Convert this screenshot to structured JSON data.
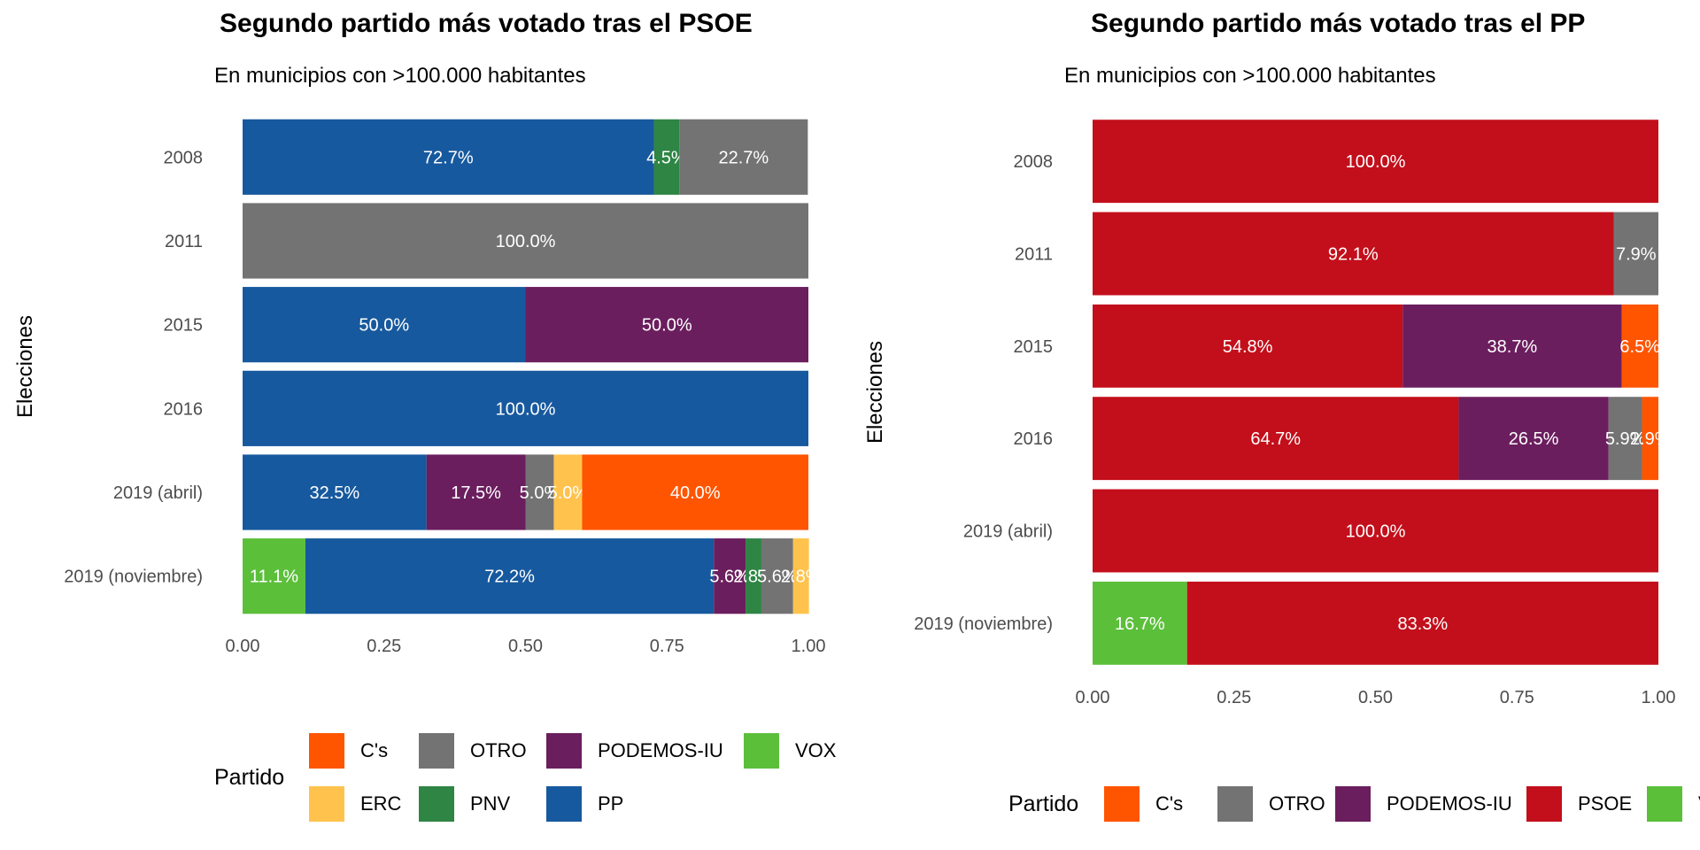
{
  "chart_data": [
    {
      "type": "bar",
      "orientation": "horizontal",
      "stacked": true,
      "title": "Segundo partido más votado tras el PSOE",
      "subtitle": "En municipios con >100.000 habitantes",
      "xlabel": "",
      "ylabel": "Elecciones",
      "xlim": [
        0,
        1
      ],
      "xticks": [
        "0.00",
        "0.25",
        "0.50",
        "0.75",
        "1.00"
      ],
      "grid": false,
      "legend_position": "bottom",
      "legend_title": "Partido",
      "legend": [
        "C's",
        "OTRO",
        "PODEMOS-IU",
        "VOX",
        "ERC",
        "PNV",
        "PP"
      ],
      "categories": [
        "2008",
        "2011",
        "2015",
        "2016",
        "2019 (abril)",
        "2019 (noviembre)"
      ],
      "rows": [
        {
          "category": "2008",
          "segments": [
            {
              "party": "PP",
              "value": 0.727,
              "label": "72.7%"
            },
            {
              "party": "PNV",
              "value": 0.045,
              "label": "4.5%"
            },
            {
              "party": "OTRO",
              "value": 0.227,
              "label": "22.7%"
            }
          ]
        },
        {
          "category": "2011",
          "segments": [
            {
              "party": "OTRO",
              "value": 1.0,
              "label": "100.0%"
            }
          ]
        },
        {
          "category": "2015",
          "segments": [
            {
              "party": "PP",
              "value": 0.5,
              "label": "50.0%"
            },
            {
              "party": "PODEMOS-IU",
              "value": 0.5,
              "label": "50.0%"
            }
          ]
        },
        {
          "category": "2016",
          "segments": [
            {
              "party": "PP",
              "value": 1.0,
              "label": "100.0%"
            }
          ]
        },
        {
          "category": "2019 (abril)",
          "segments": [
            {
              "party": "PP",
              "value": 0.325,
              "label": "32.5%"
            },
            {
              "party": "PODEMOS-IU",
              "value": 0.175,
              "label": "17.5%"
            },
            {
              "party": "OTRO",
              "value": 0.05,
              "label": "5.0%"
            },
            {
              "party": "ERC",
              "value": 0.05,
              "label": "5.0%"
            },
            {
              "party": "C's",
              "value": 0.4,
              "label": "40.0%"
            }
          ]
        },
        {
          "category": "2019 (noviembre)",
          "segments": [
            {
              "party": "VOX",
              "value": 0.111,
              "label": "11.1%"
            },
            {
              "party": "PP",
              "value": 0.722,
              "label": "72.2%"
            },
            {
              "party": "PODEMOS-IU",
              "value": 0.056,
              "label": "5.6%"
            },
            {
              "party": "PNV",
              "value": 0.028,
              "label": "2.8%"
            },
            {
              "party": "OTRO",
              "value": 0.056,
              "label": "5.6%"
            },
            {
              "party": "ERC",
              "value": 0.028,
              "label": "2.8%"
            }
          ]
        }
      ]
    },
    {
      "type": "bar",
      "orientation": "horizontal",
      "stacked": true,
      "title": "Segundo partido más votado tras el PP",
      "subtitle": "En municipios con >100.000 habitantes",
      "xlabel": "",
      "ylabel": "Elecciones",
      "xlim": [
        0,
        1
      ],
      "xticks": [
        "0.00",
        "0.25",
        "0.50",
        "0.75",
        "1.00"
      ],
      "grid": false,
      "legend_position": "bottom",
      "legend_title": "Partido",
      "legend": [
        "C's",
        "OTRO",
        "PODEMOS-IU",
        "PSOE",
        "VOX"
      ],
      "categories": [
        "2008",
        "2011",
        "2015",
        "2016",
        "2019 (abril)",
        "2019 (noviembre)"
      ],
      "rows": [
        {
          "category": "2008",
          "segments": [
            {
              "party": "PSOE",
              "value": 1.0,
              "label": "100.0%"
            }
          ]
        },
        {
          "category": "2011",
          "segments": [
            {
              "party": "PSOE",
              "value": 0.921,
              "label": "92.1%"
            },
            {
              "party": "OTRO",
              "value": 0.079,
              "label": "7.9%"
            }
          ]
        },
        {
          "category": "2015",
          "segments": [
            {
              "party": "PSOE",
              "value": 0.548,
              "label": "54.8%"
            },
            {
              "party": "PODEMOS-IU",
              "value": 0.387,
              "label": "38.7%"
            },
            {
              "party": "C's",
              "value": 0.065,
              "label": "6.5%"
            }
          ]
        },
        {
          "category": "2016",
          "segments": [
            {
              "party": "PSOE",
              "value": 0.647,
              "label": "64.7%"
            },
            {
              "party": "PODEMOS-IU",
              "value": 0.265,
              "label": "26.5%"
            },
            {
              "party": "OTRO",
              "value": 0.059,
              "label": "5.9%"
            },
            {
              "party": "C's",
              "value": 0.029,
              "label": "2.9%"
            }
          ]
        },
        {
          "category": "2019 (abril)",
          "segments": [
            {
              "party": "PSOE",
              "value": 1.0,
              "label": "100.0%"
            }
          ]
        },
        {
          "category": "2019 (noviembre)",
          "segments": [
            {
              "party": "VOX",
              "value": 0.167,
              "label": "16.7%"
            },
            {
              "party": "PSOE",
              "value": 0.833,
              "label": "83.3%"
            }
          ]
        }
      ]
    }
  ],
  "colors": {
    "C's": "#FF5500",
    "OTRO": "#737373",
    "PODEMOS-IU": "#6B1E5E",
    "VOX": "#5BBF3A",
    "ERC": "#FFC34D",
    "PNV": "#2E8544",
    "PP": "#17599E",
    "PSOE": "#C30F1B"
  }
}
